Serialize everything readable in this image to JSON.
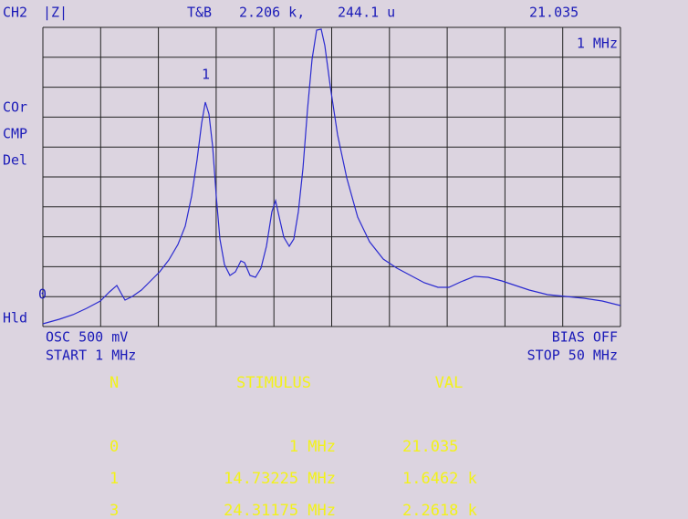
{
  "header": {
    "channel": "CH2",
    "parameter": "|Z|",
    "mode": "T&B",
    "value_1": "2.206 k,",
    "value_2": "244.1 u",
    "reading": "21.035"
  },
  "screen": {
    "span_label": "1 MHz",
    "marker_1": "1",
    "marker_0": "0",
    "side_labels": [
      "COr",
      "CMP",
      "Del",
      "Hld"
    ],
    "oscillator": "OSC 500 mV",
    "bias": "BIAS OFF",
    "start": "START 1 MHz",
    "stop": "STOP 50 MHz"
  },
  "table": {
    "headers": [
      "N",
      "STIMULUS",
      "VAL"
    ],
    "rows": [
      [
        "0",
        "1 MHz",
        "21.035"
      ],
      [
        "1",
        "14.73225 MHz",
        "1.6462 k"
      ],
      [
        "3",
        "24.31175 MHz",
        "2.2618 k"
      ]
    ]
  }
}
